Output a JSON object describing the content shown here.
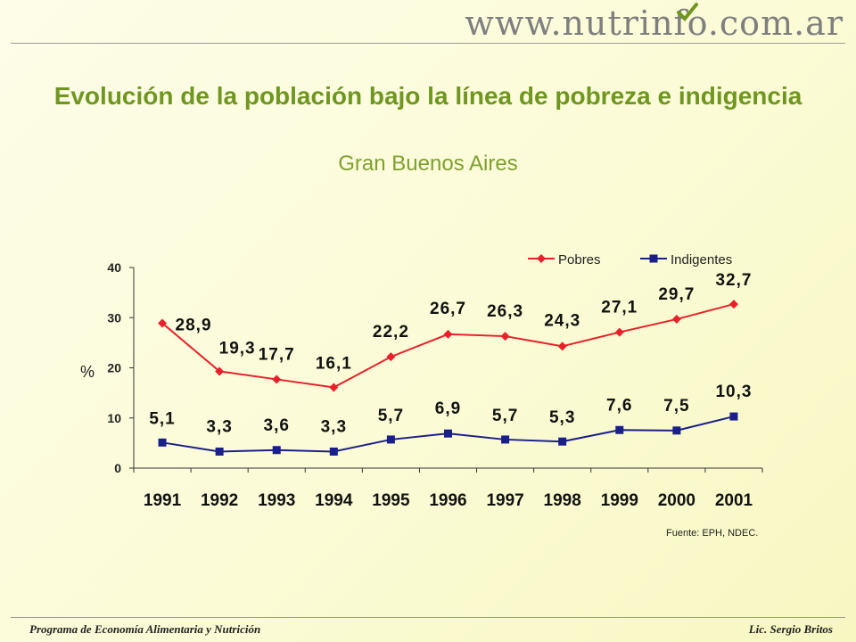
{
  "header": {
    "site": "www.nutrinfo.com.ar"
  },
  "title": "Evolución de la población bajo la línea de pobreza e indigencia",
  "subtitle": "Gran Buenos Aires",
  "source": "Fuente: EPH, NDEC.",
  "footer": {
    "left": "Programa de Economía Alimentaria y Nutrición",
    "right": "Lic. Sergio Britos"
  },
  "chart_data": {
    "type": "line",
    "ylabel": "%",
    "ylim": [
      0,
      40
    ],
    "yticks": [
      0,
      10,
      20,
      30,
      40
    ],
    "legend_position": "top-right",
    "grid": false,
    "x": [
      "1991",
      "1992",
      "1993",
      "1994",
      "1995",
      "1996",
      "1997",
      "1998",
      "1999",
      "2000",
      "2001"
    ],
    "series": [
      {
        "name": "Pobres",
        "color": "#e8202a",
        "marker": "diamond",
        "values": [
          28.9,
          19.3,
          17.7,
          16.1,
          22.2,
          26.7,
          26.3,
          24.3,
          27.1,
          29.7,
          32.7
        ],
        "labels": [
          "28,9",
          "19,3",
          "17,7",
          "16,1",
          "22,2",
          "26,7",
          "26,3",
          "24,3",
          "27,1",
          "29,7",
          "32,7"
        ]
      },
      {
        "name": "Indigentes",
        "color": "#1a1f8a",
        "marker": "square",
        "values": [
          5.1,
          3.3,
          3.6,
          3.3,
          5.7,
          6.9,
          5.7,
          5.3,
          7.6,
          7.5,
          10.3
        ],
        "labels": [
          "5,1",
          "3,3",
          "3,6",
          "3,3",
          "5,7",
          "6,9",
          "5,7",
          "5,3",
          "7,6",
          "7,5",
          "10,3"
        ]
      }
    ]
  }
}
